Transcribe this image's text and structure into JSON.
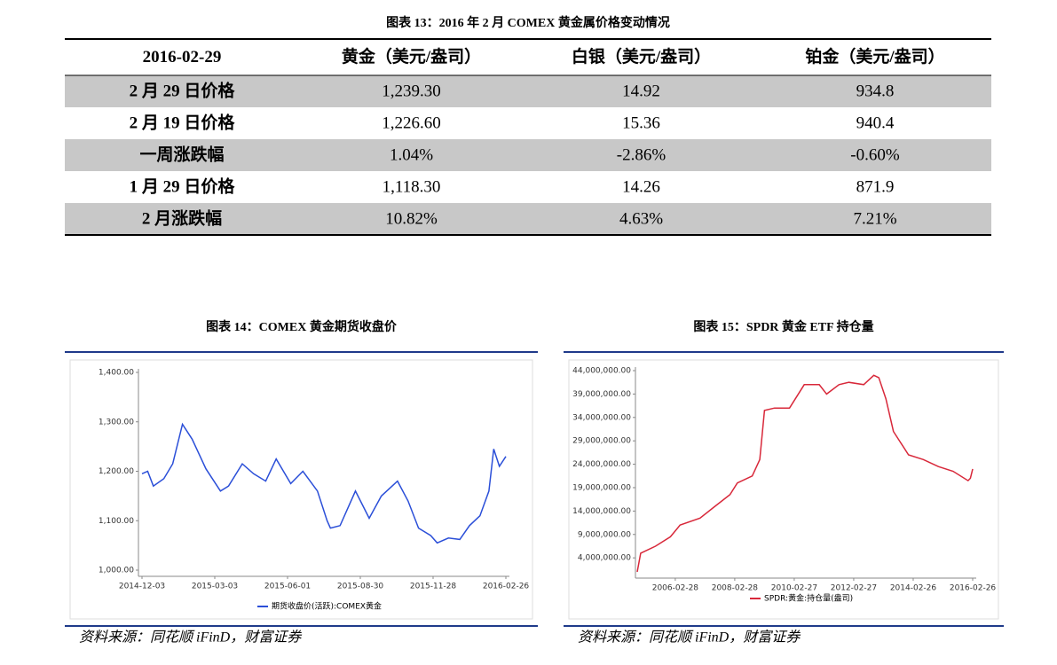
{
  "table": {
    "title": "图表 13：2016 年 2 月 COMEX 黄金属价格变动情况",
    "header": [
      "2016-02-29",
      "黄金（美元/盎司）",
      "白银（美元/盎司）",
      "铂金（美元/盎司）"
    ],
    "rows": [
      [
        "2 月 29 日价格",
        "1,239.30",
        "14.92",
        "934.8"
      ],
      [
        "2 月 19 日价格",
        "1,226.60",
        "15.36",
        "940.4"
      ],
      [
        "一周涨跌幅",
        "1.04%",
        "-2.86%",
        "-0.60%"
      ],
      [
        "1 月 29 日价格",
        "1,118.30",
        "14.26",
        "871.9"
      ],
      [
        "2 月涨跌幅",
        "10.82%",
        "4.63%",
        "7.21%"
      ]
    ]
  },
  "chart_data": [
    {
      "type": "line",
      "title": "图表 14：COMEX 黄金期货收盘价",
      "source": "资料来源：同花顺 iFinD，财富证券",
      "x": [
        "2014-12-03",
        "2014-12-10",
        "2014-12-17",
        "2014-12-30",
        "2015-01-10",
        "2015-01-22",
        "2015-02-03",
        "2015-02-20",
        "2015-03-10",
        "2015-03-20",
        "2015-04-06",
        "2015-04-20",
        "2015-05-05",
        "2015-05-18",
        "2015-06-05",
        "2015-06-20",
        "2015-07-08",
        "2015-07-20",
        "2015-07-24",
        "2015-08-05",
        "2015-08-24",
        "2015-09-10",
        "2015-09-25",
        "2015-10-15",
        "2015-10-28",
        "2015-11-10",
        "2015-11-25",
        "2015-12-03",
        "2015-12-17",
        "2015-12-31",
        "2016-01-12",
        "2016-01-25",
        "2016-02-05",
        "2016-02-11",
        "2016-02-18",
        "2016-02-26"
      ],
      "series": [
        {
          "name": "期货收盘价(活跃):COMEX黄金",
          "color": "#2b4fd8",
          "values": [
            1195,
            1200,
            1170,
            1185,
            1215,
            1295,
            1265,
            1205,
            1160,
            1170,
            1215,
            1195,
            1180,
            1225,
            1175,
            1200,
            1160,
            1100,
            1085,
            1090,
            1160,
            1105,
            1150,
            1180,
            1140,
            1085,
            1070,
            1055,
            1065,
            1062,
            1090,
            1110,
            1160,
            1245,
            1210,
            1230
          ]
        }
      ],
      "xlim": [
        "2014-12-03",
        "2016-02-26"
      ],
      "xticks": [
        "2014-12-03",
        "2015-03-03",
        "2015-06-01",
        "2015-08-30",
        "2015-11-28",
        "2016-02-26"
      ],
      "ylim": [
        1000,
        1400
      ],
      "yticks": [
        {
          "value": 1000,
          "label": "1,000.00"
        },
        {
          "value": 1100,
          "label": "1,100.00"
        },
        {
          "value": 1200,
          "label": "1,200.00"
        },
        {
          "value": 1300,
          "label": "1,300.00"
        },
        {
          "value": 1400,
          "label": "1,400.00"
        }
      ],
      "grid": false
    },
    {
      "type": "line",
      "title": "图表 15：SPDR 黄金 ETF 持仓量",
      "source": "资料来源：同花顺 iFinD，财富证券",
      "x": [
        "2004-11-18",
        "2004-12-31",
        "2005-06-30",
        "2005-12-30",
        "2006-04-28",
        "2006-12-29",
        "2007-06-29",
        "2007-12-31",
        "2008-03-31",
        "2008-09-30",
        "2008-12-31",
        "2009-02-27",
        "2009-06-30",
        "2009-12-31",
        "2010-06-30",
        "2010-12-31",
        "2011-03-31",
        "2011-08-31",
        "2011-12-30",
        "2012-06-29",
        "2012-10-31",
        "2012-12-31",
        "2013-03-28",
        "2013-06-28",
        "2013-12-31",
        "2014-06-30",
        "2014-12-31",
        "2015-06-30",
        "2015-12-31",
        "2016-01-29",
        "2016-02-26"
      ],
      "series": [
        {
          "name": "SPDR:黄金:持仓量(盎司)",
          "color": "#d8283a",
          "values": [
            1000000,
            5000000,
            6500000,
            8500000,
            11000000,
            12500000,
            15000000,
            17500000,
            20000000,
            21500000,
            25000000,
            35500000,
            36000000,
            36000000,
            41000000,
            41000000,
            39000000,
            41000000,
            41500000,
            41000000,
            43000000,
            42500000,
            38000000,
            31000000,
            26000000,
            25000000,
            23500000,
            22500000,
            20500000,
            21000000,
            23000000
          ]
        }
      ],
      "xlim": [
        "2004-11-18",
        "2016-02-26"
      ],
      "xticks": [
        "2006-02-28",
        "2008-02-28",
        "2010-02-27",
        "2012-02-27",
        "2014-02-26",
        "2016-02-26"
      ],
      "ylim": [
        1000000,
        44000000
      ],
      "yticks": [
        {
          "value": 4000000,
          "label": "4,000,000.00"
        },
        {
          "value": 9000000,
          "label": "9,000,000.00"
        },
        {
          "value": 14000000,
          "label": "14,000,000.00"
        },
        {
          "value": 19000000,
          "label": "19,000,000.00"
        },
        {
          "value": 24000000,
          "label": "24,000,000.00"
        },
        {
          "value": 29000000,
          "label": "29,000,000.00"
        },
        {
          "value": 34000000,
          "label": "34,000,000.00"
        },
        {
          "value": 39000000,
          "label": "39,000,000.00"
        },
        {
          "value": 44000000,
          "label": "44,000,000.00"
        }
      ],
      "grid": false
    }
  ]
}
